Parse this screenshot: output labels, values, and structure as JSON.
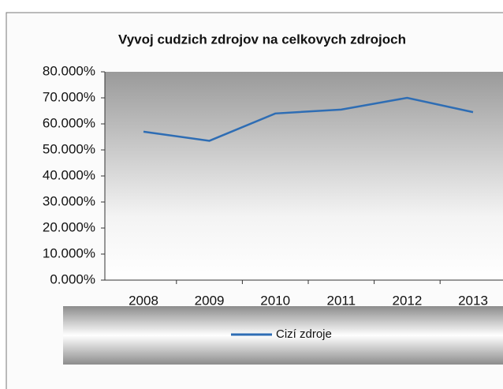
{
  "chart_data": {
    "type": "line",
    "title": "Vyvoj cudzich zdrojov na celkovych zdrojoch",
    "categories": [
      "2008",
      "2009",
      "2010",
      "2011",
      "2012",
      "2013"
    ],
    "series": [
      {
        "name": "Cizí zdroje",
        "color": "#2e6db4",
        "values": [
          57,
          53.5,
          64,
          65.5,
          70,
          64.5
        ]
      }
    ],
    "ylim": [
      0,
      80
    ],
    "yticks": [
      {
        "value": 0,
        "label": "0.000%"
      },
      {
        "value": 10,
        "label": "10.000%"
      },
      {
        "value": 20,
        "label": "20.000%"
      },
      {
        "value": 30,
        "label": "30.000%"
      },
      {
        "value": 40,
        "label": "40.000%"
      },
      {
        "value": 50,
        "label": "50.000%"
      },
      {
        "value": 60,
        "label": "60.000%"
      },
      {
        "value": 70,
        "label": "70.000%"
      },
      {
        "value": 80,
        "label": "80.000%"
      }
    ],
    "legend": "bottom"
  }
}
